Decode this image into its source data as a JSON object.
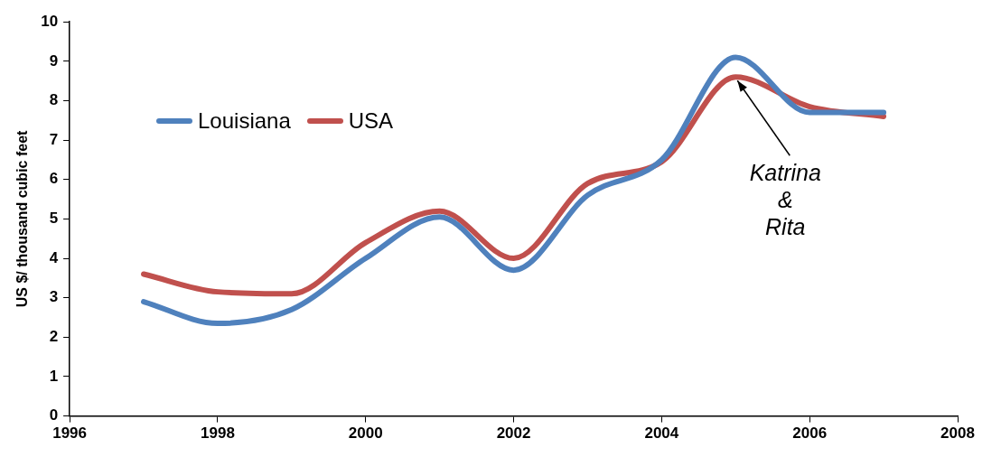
{
  "chart_data": {
    "type": "line",
    "ylabel": "US $/ thousand cubic feet",
    "x": [
      1997,
      1998,
      1999,
      2000,
      2001,
      2002,
      2003,
      2004,
      2005,
      2006,
      2007
    ],
    "series": [
      {
        "name": "Louisiana",
        "color": "#4f81bd",
        "values": [
          2.9,
          2.35,
          2.7,
          4.0,
          5.05,
          3.7,
          5.6,
          6.5,
          9.1,
          7.7,
          7.7
        ]
      },
      {
        "name": "USA",
        "color": "#c0504d",
        "values": [
          3.6,
          3.15,
          3.1,
          4.4,
          5.2,
          4.0,
          5.9,
          6.45,
          8.6,
          7.85,
          7.6
        ]
      }
    ],
    "xlim": [
      1996,
      2008
    ],
    "xticks": [
      1996,
      1998,
      2000,
      2002,
      2004,
      2006,
      2008
    ],
    "ylim": [
      0,
      10
    ],
    "yticks": [
      0,
      1,
      2,
      3,
      4,
      5,
      6,
      7,
      8,
      9,
      10
    ],
    "grid": false,
    "legend": "top left",
    "marker": "none",
    "line_style": "solid",
    "annotations": [
      {
        "text": "Katrina\n&\nRita",
        "x": 2005,
        "y": 8.6
      }
    ]
  }
}
